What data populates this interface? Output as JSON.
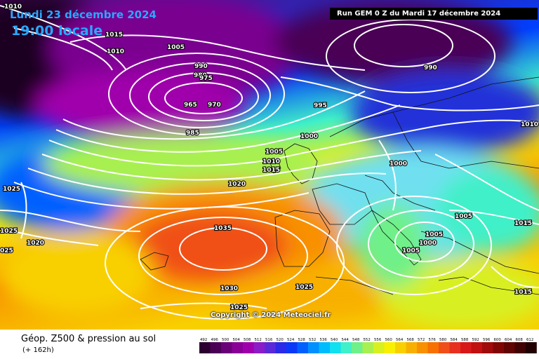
{
  "header": {
    "date": "Lundi 23 décembre 2024",
    "time": "19:00 locale",
    "run": "Run GEM 0 Z du Mardi 17 décembre 2024"
  },
  "copyright": "Copyright © 2024 Meteociel.fr",
  "footer": {
    "title": "Géop. Z500 & pression au sol",
    "subtitle": "(+ 162h)"
  },
  "legend": {
    "ticks": [
      "492",
      "496",
      "500",
      "504",
      "508",
      "512",
      "516",
      "520",
      "524",
      "528",
      "532",
      "536",
      "540",
      "544",
      "548",
      "552",
      "556",
      "560",
      "564",
      "568",
      "572",
      "576",
      "580",
      "584",
      "588",
      "592",
      "596",
      "600",
      "604",
      "608",
      "612"
    ],
    "colors": [
      "#2b0030",
      "#4a0055",
      "#6a0078",
      "#8a0096",
      "#a000ac",
      "#8c1cc8",
      "#5a2ad8",
      "#2a2ae8",
      "#0a38f8",
      "#0060ff",
      "#0090ff",
      "#00bcff",
      "#10e0f0",
      "#40f0c8",
      "#70f088",
      "#a8f050",
      "#d8f020",
      "#f8f000",
      "#f8d000",
      "#f8b000",
      "#f89000",
      "#f87000",
      "#f05018",
      "#e83020",
      "#d81818",
      "#c01010",
      "#a00a0a",
      "#800606",
      "#600404",
      "#400202",
      "#200000"
    ]
  },
  "isobars": [
    {
      "text": "1010",
      "pos": "top-left corner"
    },
    {
      "text": "1015",
      "pos": "nw"
    },
    {
      "text": "1010",
      "pos": "nw"
    },
    {
      "text": "1005",
      "pos": "north atlantic"
    },
    {
      "text": "990",
      "pos": "low center"
    },
    {
      "text": "980",
      "pos": "low center"
    },
    {
      "text": "975",
      "pos": "low center"
    },
    {
      "text": "965",
      "pos": "low center"
    },
    {
      "text": "970",
      "pos": "low center"
    },
    {
      "text": "985",
      "pos": "south of low"
    },
    {
      "text": "995",
      "pos": "east of low"
    },
    {
      "text": "990",
      "pos": "scandinavia"
    },
    {
      "text": "1010",
      "pos": "east edge"
    },
    {
      "text": "1000",
      "pos": "north sea"
    },
    {
      "text": "1005",
      "pos": "british isles"
    },
    {
      "text": "1010",
      "pos": "british isles"
    },
    {
      "text": "1015",
      "pos": "british isles"
    },
    {
      "text": "1000",
      "pos": "central europe"
    },
    {
      "text": "1020",
      "pos": "atlantic"
    },
    {
      "text": "1025",
      "pos": "west edge"
    },
    {
      "text": "1025",
      "pos": "west edge"
    },
    {
      "text": "1020",
      "pos": "west"
    },
    {
      "text": "025",
      "pos": "west edge"
    },
    {
      "text": "1035",
      "pos": "azores high"
    },
    {
      "text": "1030",
      "pos": "south"
    },
    {
      "text": "1025",
      "pos": "iberia"
    },
    {
      "text": "1025",
      "pos": "south"
    },
    {
      "text": "1005",
      "pos": "italy low"
    },
    {
      "text": "1000",
      "pos": "italy low"
    },
    {
      "text": "1005",
      "pos": "italy low"
    },
    {
      "text": "1005",
      "pos": "balkans"
    },
    {
      "text": "1015",
      "pos": "east edge"
    },
    {
      "text": "1015",
      "pos": "south-east"
    }
  ]
}
